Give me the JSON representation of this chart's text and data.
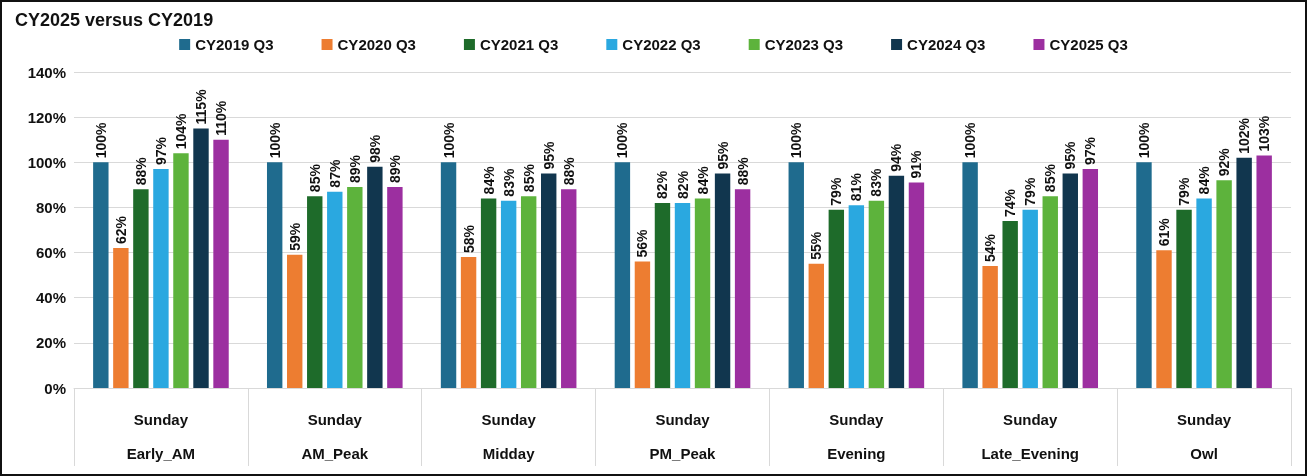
{
  "chart_data": {
    "type": "bar",
    "title": "CY2025 versus CY2019",
    "categories": [
      "Sunday\nEarly_AM",
      "Sunday\nAM_Peak",
      "Sunday\nMidday",
      "Sunday\nPM_Peak",
      "Sunday\nEvening",
      "Sunday\nLate_Evening",
      "Sunday\nOwl"
    ],
    "series": [
      {
        "name": "CY2019 Q3",
        "color": "#1f6b8e",
        "values": [
          100,
          100,
          100,
          100,
          100,
          100,
          100
        ],
        "value_labels": [
          "100%",
          "100%",
          "100%",
          "100%",
          "100%",
          "100%",
          "100%"
        ]
      },
      {
        "name": "CY2020 Q3",
        "color": "#ed7d31",
        "values": [
          62,
          59,
          58,
          56,
          55,
          54,
          61
        ],
        "value_labels": [
          "62%",
          "59%",
          "58%",
          "56%",
          "55%",
          "54%",
          "61%"
        ]
      },
      {
        "name": "CY2021 Q3",
        "color": "#1e6b2a",
        "values": [
          88,
          85,
          84,
          82,
          79,
          74,
          79
        ],
        "value_labels": [
          "88%",
          "85%",
          "84%",
          "82%",
          "79%",
          "74%",
          "79%"
        ]
      },
      {
        "name": "CY2022 Q3",
        "color": "#2aa8e0",
        "values": [
          97,
          87,
          83,
          82,
          81,
          79,
          84
        ],
        "value_labels": [
          "97%",
          "87%",
          "83%",
          "82%",
          "81%",
          "79%",
          "84%"
        ]
      },
      {
        "name": "CY2023 Q3",
        "color": "#5db33c",
        "values": [
          104,
          89,
          85,
          84,
          83,
          85,
          92
        ],
        "value_labels": [
          "104%",
          "89%",
          "85%",
          "84%",
          "83%",
          "85%",
          "92%"
        ]
      },
      {
        "name": "CY2024 Q3",
        "color": "#11364e",
        "values": [
          115,
          98,
          95,
          95,
          94,
          95,
          102
        ],
        "value_labels": [
          "115%",
          "98%",
          "95%",
          "95%",
          "94%",
          "95%",
          "102%"
        ]
      },
      {
        "name": "CY2025 Q3",
        "color": "#9c2fa0",
        "values": [
          110,
          89,
          88,
          88,
          91,
          97,
          103
        ],
        "value_labels": [
          "110%",
          "89%",
          "88%",
          "88%",
          "91%",
          "97%",
          "103%"
        ]
      }
    ],
    "ylim": [
      0,
      140
    ],
    "yticks": [
      {
        "value": 0,
        "label": "0%"
      },
      {
        "value": 20,
        "label": "20%"
      },
      {
        "value": 40,
        "label": "40%"
      },
      {
        "value": 60,
        "label": "60%"
      },
      {
        "value": 80,
        "label": "80%"
      },
      {
        "value": 100,
        "label": "100%"
      },
      {
        "value": 120,
        "label": "120%"
      },
      {
        "value": 140,
        "label": "140%"
      }
    ],
    "grid": "y",
    "legend": "top"
  }
}
